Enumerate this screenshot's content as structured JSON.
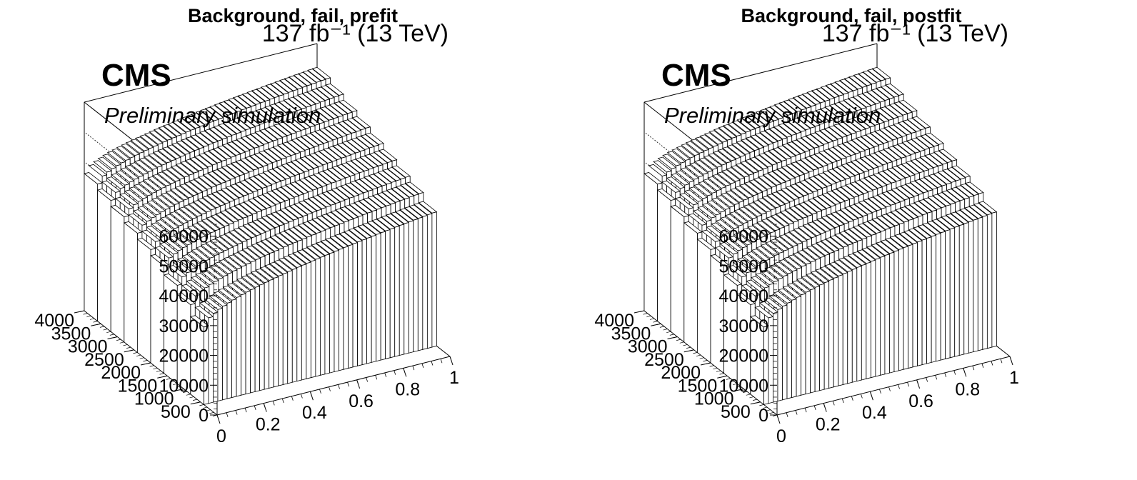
{
  "chart_data": [
    {
      "type": "lego3d",
      "title": "Background, fail, prefit",
      "lumi_label": "137 fb⁻¹ (13 TeV)",
      "experiment_label": "CMS",
      "status_label": "Preliminary simulation",
      "x": {
        "ticks": [
          0,
          0.2,
          0.4,
          0.6,
          0.8,
          1
        ],
        "tick_labels": [
          "0",
          "0.2",
          "0.4",
          "0.6",
          "0.8",
          "1"
        ],
        "range": [
          0,
          1
        ]
      },
      "y": {
        "ticks": [
          500,
          1000,
          1500,
          2000,
          2500,
          3000,
          3500,
          4000
        ],
        "tick_labels": [
          "500",
          "1000",
          "1500",
          "2000",
          "2500",
          "3000",
          "3500",
          "4000"
        ],
        "range": [
          0,
          4000
        ]
      },
      "z": {
        "ticks": [
          0,
          10000,
          20000,
          30000,
          40000,
          50000,
          60000
        ],
        "tick_labels": [
          "0",
          "10000",
          "20000",
          "30000",
          "40000",
          "50000",
          "60000"
        ],
        "range": [
          0,
          70000
        ]
      },
      "x_bins": 50,
      "slices": [
        {
          "y_low": 0,
          "y_high": 400,
          "start": 0,
          "end": 0,
          "rise": 0
        },
        {
          "y_low": 400,
          "y_high": 800,
          "start": 26000,
          "end": 45000,
          "rise": 17000
        },
        {
          "y_low": 800,
          "y_high": 1200,
          "start": 30000,
          "end": 48000,
          "rise": 17000
        },
        {
          "y_low": 1200,
          "y_high": 1600,
          "start": 33000,
          "end": 50000,
          "rise": 17000
        },
        {
          "y_low": 1600,
          "y_high": 2000,
          "start": 36000,
          "end": 52000,
          "rise": 17000
        },
        {
          "y_low": 2000,
          "y_high": 2400,
          "start": 38000,
          "end": 54000,
          "rise": 17000
        },
        {
          "y_low": 2400,
          "y_high": 2800,
          "start": 40000,
          "end": 56000,
          "rise": 17000
        },
        {
          "y_low": 2800,
          "y_high": 3200,
          "start": 42000,
          "end": 58000,
          "rise": 17000
        },
        {
          "y_low": 3200,
          "y_high": 3600,
          "start": 44000,
          "end": 60000,
          "rise": 17000
        },
        {
          "y_low": 3600,
          "y_high": 4000,
          "start": 46000,
          "end": 62000,
          "rise": 17000
        }
      ]
    },
    {
      "type": "lego3d",
      "title": "Background, fail, postfit",
      "lumi_label": "137 fb⁻¹ (13 TeV)",
      "experiment_label": "CMS",
      "status_label": "Preliminary simulation",
      "x": {
        "ticks": [
          0,
          0.2,
          0.4,
          0.6,
          0.8,
          1
        ],
        "tick_labels": [
          "0",
          "0.2",
          "0.4",
          "0.6",
          "0.8",
          "1"
        ],
        "range": [
          0,
          1
        ]
      },
      "y": {
        "ticks": [
          500,
          1000,
          1500,
          2000,
          2500,
          3000,
          3500,
          4000
        ],
        "tick_labels": [
          "500",
          "1000",
          "1500",
          "2000",
          "2500",
          "3000",
          "3500",
          "4000"
        ],
        "range": [
          0,
          4000
        ]
      },
      "z": {
        "ticks": [
          0,
          10000,
          20000,
          30000,
          40000,
          50000,
          60000
        ],
        "tick_labels": [
          "0",
          "10000",
          "20000",
          "30000",
          "40000",
          "50000",
          "60000"
        ],
        "range": [
          0,
          70000
        ]
      },
      "x_bins": 50,
      "slices": [
        {
          "y_low": 0,
          "y_high": 400,
          "start": 0,
          "end": 0,
          "rise": 0
        },
        {
          "y_low": 400,
          "y_high": 800,
          "start": 26000,
          "end": 45000,
          "rise": 17000
        },
        {
          "y_low": 800,
          "y_high": 1200,
          "start": 30000,
          "end": 48000,
          "rise": 17000
        },
        {
          "y_low": 1200,
          "y_high": 1600,
          "start": 33000,
          "end": 50000,
          "rise": 17000
        },
        {
          "y_low": 1600,
          "y_high": 2000,
          "start": 36000,
          "end": 52000,
          "rise": 17000
        },
        {
          "y_low": 2000,
          "y_high": 2400,
          "start": 38000,
          "end": 54000,
          "rise": 17000
        },
        {
          "y_low": 2400,
          "y_high": 2800,
          "start": 40000,
          "end": 56000,
          "rise": 17000
        },
        {
          "y_low": 2800,
          "y_high": 3200,
          "start": 42000,
          "end": 58000,
          "rise": 17000
        },
        {
          "y_low": 3200,
          "y_high": 3600,
          "start": 44000,
          "end": 60000,
          "rise": 17000
        },
        {
          "y_low": 3600,
          "y_high": 4000,
          "start": 46000,
          "end": 62000,
          "rise": 17000
        }
      ]
    }
  ]
}
